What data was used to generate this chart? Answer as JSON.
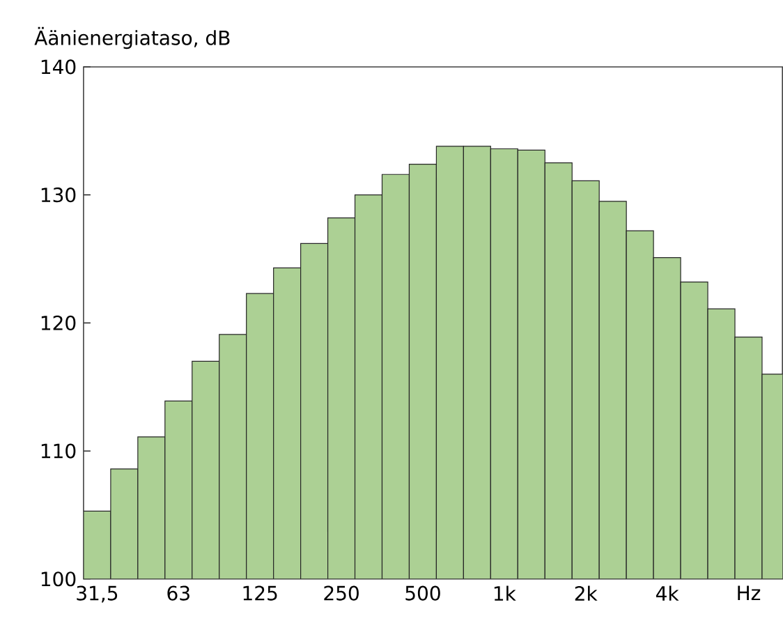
{
  "chart_data": {
    "type": "bar",
    "ylabel": "Äänienergiataso, dB",
    "categories": [
      "31,5",
      null,
      null,
      "63",
      null,
      null,
      "125",
      null,
      null,
      "250",
      null,
      null,
      "500",
      null,
      null,
      "1k",
      null,
      null,
      "2k",
      null,
      null,
      "4k",
      null,
      null,
      "Hz",
      null
    ],
    "values": [
      105.3,
      108.6,
      111.1,
      113.9,
      117.0,
      119.1,
      122.3,
      124.3,
      126.2,
      128.2,
      130.0,
      131.6,
      132.4,
      133.8,
      133.8,
      133.6,
      133.5,
      132.5,
      131.1,
      129.5,
      127.2,
      125.1,
      123.2,
      121.1,
      118.9,
      116.0
    ],
    "color": "#acd094",
    "ylim": [
      100,
      140
    ],
    "yticks": [
      100,
      110,
      120,
      130,
      140
    ],
    "grid": false
  }
}
